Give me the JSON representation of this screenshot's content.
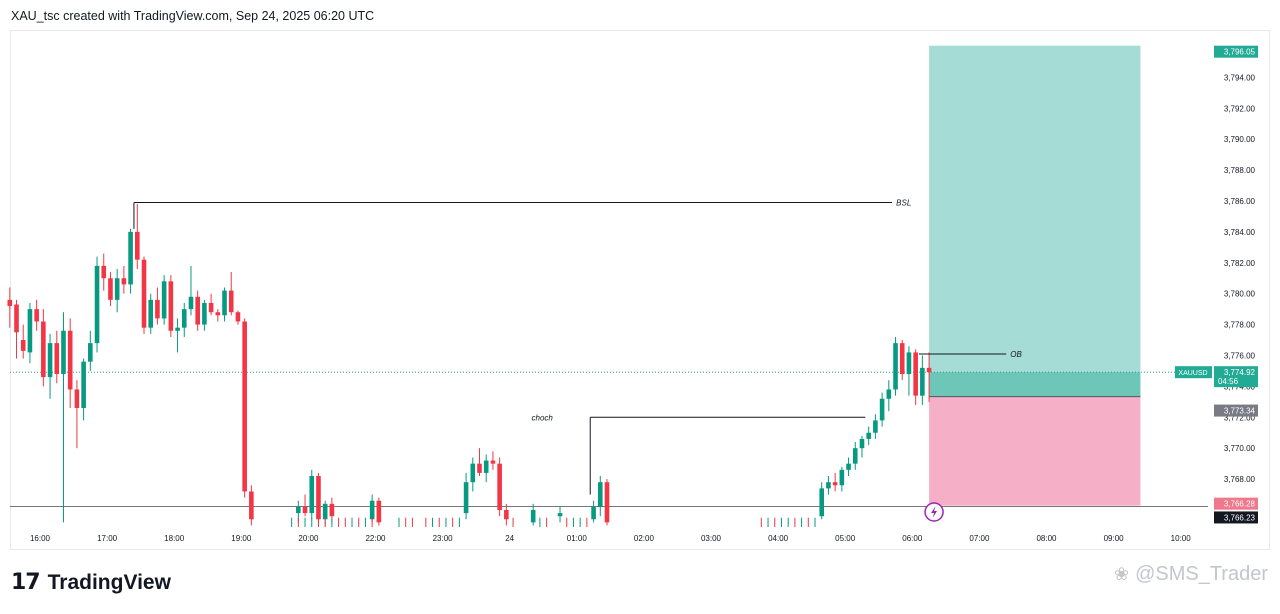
{
  "header": {
    "title": "XAU_tsc created with TradingView.com, Sep 24, 2025 06:20 UTC"
  },
  "footer": {
    "logo_mark": "17",
    "logo_text": "TradingView",
    "watermark": "@SMS_Trader"
  },
  "colors": {
    "up": "#089981",
    "down": "#f23645",
    "target_zone": "#a5ddd6",
    "target_zone_entry": "#6ec6b8",
    "stop_zone": "#f5b0c8",
    "grid_text": "#131722",
    "current_price_tag": "#22ab94",
    "entry_tag": "#787b86",
    "stop_tag": "#f0788c",
    "lightning": "#9c27b0"
  },
  "chart_data": {
    "type": "candlestick",
    "symbol": "XAUUSD",
    "countdown": "04:56",
    "ylim": [
      3766,
      3797
    ],
    "y_ticks": [
      3768,
      3770,
      3772,
      3774,
      3776,
      3778,
      3780,
      3782,
      3784,
      3786,
      3788,
      3790,
      3792,
      3794
    ],
    "y_tick_labels": [
      "3,768.00",
      "3,770.00",
      "3,772.00",
      "3,774.00",
      "3,776.00",
      "3,778.00",
      "3,780.00",
      "3,782.00",
      "3,784.00",
      "3,786.00",
      "3,788.00",
      "3,790.00",
      "3,792.00",
      "3,794.00"
    ],
    "x_tick_labels": [
      "16:00",
      "17:00",
      "18:00",
      "19:00",
      "20:00",
      "22:00",
      "23:00",
      "24",
      "01:00",
      "02:00",
      "03:00",
      "04:00",
      "05:00",
      "06:00",
      "07:00",
      "08:00",
      "09:00",
      "10:00"
    ],
    "x_tick_hours": [
      16,
      17,
      18,
      19,
      20,
      21,
      22,
      23,
      24,
      25,
      26,
      27,
      28,
      29,
      30,
      31,
      32,
      33
    ],
    "price_labels": {
      "target": "3,796.05",
      "current": "3,774.92",
      "entry": "3,773.34",
      "stop": "3,766.28",
      "low_line": "3,766.23"
    },
    "levels": {
      "target": 3796.05,
      "current": 3774.92,
      "entry": 3773.34,
      "stop": 3766.28,
      "low_line": 3766.23
    },
    "annotations": [
      {
        "text": "BSL",
        "price": 3785.9,
        "from_hour": 17.4,
        "to_hour": 28.7
      },
      {
        "text": "choch",
        "price": 3772.0,
        "from_hour": 24.2,
        "to_hour": 28.3
      },
      {
        "text": "OB",
        "price": 3776.1,
        "from_hour": 29.1,
        "to_hour": 30.4
      }
    ],
    "position": {
      "from_hour": 29.25,
      "to_hour": 32.4
    },
    "candles": [
      {
        "t": 15.55,
        "o": 3779.6,
        "h": 3780.4,
        "l": 3777.8,
        "c": 3779.2
      },
      {
        "t": 15.65,
        "o": 3779.3,
        "h": 3779.6,
        "l": 3775.8,
        "c": 3777.5
      },
      {
        "t": 15.75,
        "o": 3777.0,
        "h": 3778.0,
        "l": 3775.8,
        "c": 3776.3
      },
      {
        "t": 15.85,
        "o": 3776.2,
        "h": 3779.4,
        "l": 3775.5,
        "c": 3779.0
      },
      {
        "t": 15.95,
        "o": 3779.0,
        "h": 3779.6,
        "l": 3777.6,
        "c": 3778.2
      },
      {
        "t": 16.05,
        "o": 3778.2,
        "h": 3779.0,
        "l": 3774.0,
        "c": 3774.6
      },
      {
        "t": 16.15,
        "o": 3774.6,
        "h": 3777.4,
        "l": 3773.2,
        "c": 3776.8
      },
      {
        "t": 16.25,
        "o": 3776.8,
        "h": 3777.6,
        "l": 3774.2,
        "c": 3774.8
      },
      {
        "t": 16.35,
        "o": 3774.8,
        "h": 3778.8,
        "l": 3765.2,
        "c": 3777.6
      },
      {
        "t": 16.45,
        "o": 3777.6,
        "h": 3778.4,
        "l": 3772.6,
        "c": 3773.8
      },
      {
        "t": 16.55,
        "o": 3773.8,
        "h": 3774.4,
        "l": 3770.0,
        "c": 3772.6
      },
      {
        "t": 16.65,
        "o": 3772.6,
        "h": 3775.8,
        "l": 3771.8,
        "c": 3775.6
      },
      {
        "t": 16.75,
        "o": 3775.6,
        "h": 3777.6,
        "l": 3775.0,
        "c": 3776.8
      },
      {
        "t": 16.85,
        "o": 3776.8,
        "h": 3782.4,
        "l": 3776.2,
        "c": 3781.8
      },
      {
        "t": 16.95,
        "o": 3781.8,
        "h": 3782.6,
        "l": 3780.2,
        "c": 3781.0
      },
      {
        "t": 17.05,
        "o": 3781.0,
        "h": 3781.4,
        "l": 3779.2,
        "c": 3779.6
      },
      {
        "t": 17.15,
        "o": 3779.6,
        "h": 3781.6,
        "l": 3778.8,
        "c": 3781.0
      },
      {
        "t": 17.25,
        "o": 3781.0,
        "h": 3781.8,
        "l": 3780.0,
        "c": 3780.6
      },
      {
        "t": 17.35,
        "o": 3780.6,
        "h": 3784.2,
        "l": 3780.0,
        "c": 3784.0
      },
      {
        "t": 17.45,
        "o": 3784.0,
        "h": 3785.8,
        "l": 3781.6,
        "c": 3782.2
      },
      {
        "t": 17.55,
        "o": 3782.2,
        "h": 3782.4,
        "l": 3777.4,
        "c": 3777.8
      },
      {
        "t": 17.65,
        "o": 3777.8,
        "h": 3780.0,
        "l": 3777.4,
        "c": 3779.6
      },
      {
        "t": 17.75,
        "o": 3779.6,
        "h": 3780.4,
        "l": 3778.0,
        "c": 3778.4
      },
      {
        "t": 17.85,
        "o": 3778.4,
        "h": 3781.2,
        "l": 3778.0,
        "c": 3780.8
      },
      {
        "t": 17.95,
        "o": 3780.8,
        "h": 3781.2,
        "l": 3777.2,
        "c": 3777.6
      },
      {
        "t": 18.05,
        "o": 3777.6,
        "h": 3778.4,
        "l": 3776.2,
        "c": 3777.8
      },
      {
        "t": 18.15,
        "o": 3777.8,
        "h": 3779.4,
        "l": 3777.2,
        "c": 3779.0
      },
      {
        "t": 18.25,
        "o": 3779.0,
        "h": 3781.8,
        "l": 3778.6,
        "c": 3779.8
      },
      {
        "t": 18.35,
        "o": 3779.8,
        "h": 3780.2,
        "l": 3777.6,
        "c": 3778.0
      },
      {
        "t": 18.45,
        "o": 3778.0,
        "h": 3779.6,
        "l": 3777.6,
        "c": 3779.4
      },
      {
        "t": 18.55,
        "o": 3779.4,
        "h": 3780.0,
        "l": 3778.6,
        "c": 3778.8
      },
      {
        "t": 18.65,
        "o": 3778.8,
        "h": 3779.0,
        "l": 3778.2,
        "c": 3778.6
      },
      {
        "t": 18.75,
        "o": 3778.6,
        "h": 3780.4,
        "l": 3778.2,
        "c": 3780.2
      },
      {
        "t": 18.85,
        "o": 3780.2,
        "h": 3781.4,
        "l": 3778.6,
        "c": 3778.8
      },
      {
        "t": 18.95,
        "o": 3778.8,
        "h": 3778.9,
        "l": 3778.0,
        "c": 3778.2
      },
      {
        "t": 19.05,
        "o": 3778.2,
        "h": 3778.4,
        "l": 3766.8,
        "c": 3767.2
      },
      {
        "t": 19.15,
        "o": 3767.2,
        "h": 3767.6,
        "l": 3765.0,
        "c": 3765.4
      }
    ],
    "lower_wicks": [
      {
        "t": 19.75,
        "up": true
      },
      {
        "t": 19.85,
        "up": false
      },
      {
        "t": 19.95,
        "up": true
      },
      {
        "t": 20.05,
        "up": true
      },
      {
        "t": 20.15,
        "up": false
      },
      {
        "t": 20.25,
        "up": false
      },
      {
        "t": 20.35,
        "up": true
      },
      {
        "t": 20.45,
        "up": false
      },
      {
        "t": 20.55,
        "up": false
      },
      {
        "t": 20.65,
        "up": true
      },
      {
        "t": 20.75,
        "up": false
      },
      {
        "t": 20.85,
        "up": true
      },
      {
        "t": 20.95,
        "up": false
      },
      {
        "t": 21.35,
        "up": true
      },
      {
        "t": 21.45,
        "up": false
      },
      {
        "t": 21.55,
        "up": false
      },
      {
        "t": 21.75,
        "up": false
      },
      {
        "t": 21.85,
        "up": true
      },
      {
        "t": 21.95,
        "up": false
      },
      {
        "t": 22.05,
        "up": true
      },
      {
        "t": 22.15,
        "up": false
      },
      {
        "t": 22.25,
        "up": true
      },
      {
        "t": 23.05,
        "up": false
      },
      {
        "t": 23.45,
        "up": true
      },
      {
        "t": 23.55,
        "up": false
      },
      {
        "t": 23.85,
        "up": false
      },
      {
        "t": 23.95,
        "up": true
      },
      {
        "t": 24.05,
        "up": true
      },
      {
        "t": 24.15,
        "up": false
      },
      {
        "t": 26.75,
        "up": false
      },
      {
        "t": 26.85,
        "up": true
      },
      {
        "t": 26.95,
        "up": false
      },
      {
        "t": 27.05,
        "up": true
      },
      {
        "t": 27.15,
        "up": true
      },
      {
        "t": 27.25,
        "up": false
      },
      {
        "t": 27.35,
        "up": true
      },
      {
        "t": 27.45,
        "up": false
      },
      {
        "t": 27.55,
        "up": true
      }
    ],
    "mid_candles": [
      {
        "t": 22.35,
        "o": 3765.8,
        "h": 3768.4,
        "l": 3765.4,
        "c": 3767.8
      },
      {
        "t": 22.45,
        "o": 3767.8,
        "h": 3769.4,
        "l": 3767.2,
        "c": 3769.0
      },
      {
        "t": 22.55,
        "o": 3769.0,
        "h": 3770.0,
        "l": 3768.2,
        "c": 3768.4
      },
      {
        "t": 22.65,
        "o": 3768.4,
        "h": 3769.6,
        "l": 3767.8,
        "c": 3769.2
      },
      {
        "t": 22.75,
        "o": 3769.2,
        "h": 3769.8,
        "l": 3768.6,
        "c": 3769.0
      },
      {
        "t": 22.85,
        "o": 3769.0,
        "h": 3769.4,
        "l": 3765.6,
        "c": 3766.0
      },
      {
        "t": 22.95,
        "o": 3766.0,
        "h": 3766.4,
        "l": 3765.0,
        "c": 3765.4
      },
      {
        "t": 24.25,
        "o": 3765.4,
        "h": 3766.6,
        "l": 3765.2,
        "c": 3766.2
      },
      {
        "t": 24.35,
        "o": 3766.2,
        "h": 3768.2,
        "l": 3765.6,
        "c": 3767.8
      },
      {
        "t": 24.45,
        "o": 3767.8,
        "h": 3768.0,
        "l": 3765.0,
        "c": 3765.2
      },
      {
        "t": 27.65,
        "o": 3765.6,
        "h": 3767.8,
        "l": 3765.4,
        "c": 3767.4
      },
      {
        "t": 27.75,
        "o": 3767.4,
        "h": 3768.2,
        "l": 3767.0,
        "c": 3767.8
      },
      {
        "t": 27.85,
        "o": 3767.8,
        "h": 3768.4,
        "l": 3767.2,
        "c": 3767.6
      },
      {
        "t": 27.95,
        "o": 3767.6,
        "h": 3768.8,
        "l": 3767.2,
        "c": 3768.6
      },
      {
        "t": 28.05,
        "o": 3768.6,
        "h": 3769.4,
        "l": 3768.2,
        "c": 3769.0
      },
      {
        "t": 28.15,
        "o": 3769.0,
        "h": 3770.4,
        "l": 3768.6,
        "c": 3770.0
      },
      {
        "t": 28.25,
        "o": 3770.0,
        "h": 3770.8,
        "l": 3769.4,
        "c": 3770.6
      },
      {
        "t": 28.35,
        "o": 3770.6,
        "h": 3771.4,
        "l": 3770.2,
        "c": 3771.0
      },
      {
        "t": 28.45,
        "o": 3771.0,
        "h": 3772.2,
        "l": 3770.6,
        "c": 3771.8
      },
      {
        "t": 28.55,
        "o": 3771.8,
        "h": 3773.6,
        "l": 3771.4,
        "c": 3773.2
      },
      {
        "t": 28.65,
        "o": 3773.2,
        "h": 3774.4,
        "l": 3772.4,
        "c": 3773.8
      },
      {
        "t": 28.75,
        "o": 3773.8,
        "h": 3777.2,
        "l": 3773.4,
        "c": 3776.8
      },
      {
        "t": 28.85,
        "o": 3776.8,
        "h": 3777.0,
        "l": 3774.4,
        "c": 3774.8
      },
      {
        "t": 28.95,
        "o": 3774.8,
        "h": 3776.6,
        "l": 3773.4,
        "c": 3776.2
      },
      {
        "t": 29.05,
        "o": 3776.2,
        "h": 3776.4,
        "l": 3772.8,
        "c": 3773.4
      },
      {
        "t": 29.15,
        "o": 3773.4,
        "h": 3776.0,
        "l": 3772.8,
        "c": 3775.2
      },
      {
        "t": 29.25,
        "o": 3775.2,
        "h": 3776.2,
        "l": 3773.0,
        "c": 3774.92
      }
    ],
    "late_candles": [
      {
        "t": 19.85,
        "o": 3765.8,
        "h": 3766.6,
        "l": 3765.2,
        "c": 3766.2
      },
      {
        "t": 19.95,
        "o": 3766.2,
        "h": 3767.0,
        "l": 3765.6,
        "c": 3765.8
      },
      {
        "t": 20.05,
        "o": 3765.8,
        "h": 3768.6,
        "l": 3765.4,
        "c": 3768.2
      },
      {
        "t": 20.15,
        "o": 3768.2,
        "h": 3768.4,
        "l": 3765.0,
        "c": 3765.4
      },
      {
        "t": 20.25,
        "o": 3765.4,
        "h": 3766.6,
        "l": 3765.0,
        "c": 3766.4
      },
      {
        "t": 20.35,
        "o": 3766.4,
        "h": 3766.8,
        "l": 3765.2,
        "c": 3765.6
      },
      {
        "t": 20.95,
        "o": 3765.4,
        "h": 3767.0,
        "l": 3765.2,
        "c": 3766.6
      },
      {
        "t": 21.05,
        "o": 3766.6,
        "h": 3766.8,
        "l": 3765.0,
        "c": 3765.2
      },
      {
        "t": 23.35,
        "o": 3765.2,
        "h": 3766.4,
        "l": 3765.0,
        "c": 3766.0
      },
      {
        "t": 23.75,
        "o": 3765.6,
        "h": 3766.2,
        "l": 3765.2,
        "c": 3765.8
      }
    ]
  }
}
